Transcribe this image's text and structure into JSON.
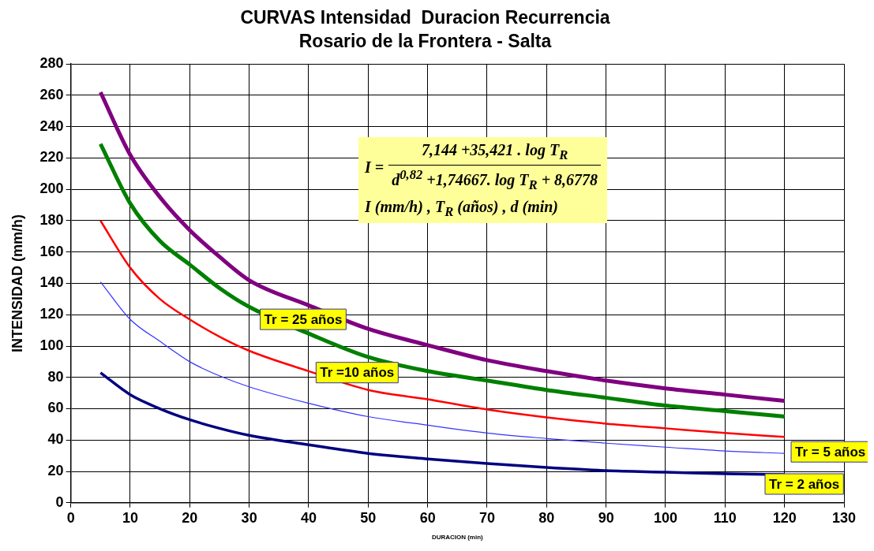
{
  "chart_data": {
    "type": "line",
    "title": "CURVAS Intensidad  Duracion Recurrencia",
    "subtitle": "Rosario de la Frontera - Salta",
    "xlabel": "DURACION (min)",
    "ylabel": "INTENSIDAD (mm/h)",
    "x": [
      5,
      10,
      15,
      20,
      25,
      30,
      40,
      50,
      60,
      70,
      80,
      90,
      100,
      110,
      120
    ],
    "series": [
      {
        "color": "#800080",
        "values": [
          262,
          222,
          195,
          174,
          157,
          142,
          126,
          111,
          100.6,
          91,
          84,
          78,
          73,
          69,
          65
        ]
      },
      {
        "name": "Tr = 25 años",
        "color": "#008000",
        "values": [
          229,
          191,
          167,
          152,
          137,
          125,
          108,
          93,
          84,
          78,
          72,
          67,
          62,
          58.5,
          55
        ]
      },
      {
        "name": "Tr =10 años",
        "color": "#ff0000",
        "values": [
          180,
          150,
          130,
          117,
          106,
          97,
          84,
          72,
          66,
          59.5,
          54.5,
          50.5,
          47.5,
          44.5,
          42
        ]
      },
      {
        "name": "Tr = 5 años",
        "color": "#3333ff",
        "values": [
          141,
          117,
          103,
          90,
          81,
          74,
          63.5,
          55,
          49.5,
          44.5,
          41,
          38,
          35.5,
          33,
          31.5
        ]
      },
      {
        "name": "Tr = 2 años",
        "color": "#000080",
        "values": [
          83,
          69,
          60,
          53,
          47.5,
          43,
          37,
          31.5,
          28,
          25,
          22.5,
          20.5,
          19.5,
          18.5,
          18
        ]
      }
    ],
    "xlim": [
      0,
      130
    ],
    "xticks": [
      0,
      10,
      20,
      30,
      40,
      50,
      60,
      70,
      80,
      90,
      100,
      110,
      120,
      130
    ],
    "ylim": [
      0,
      280
    ],
    "yticks": [
      0,
      20,
      40,
      60,
      80,
      100,
      120,
      140,
      160,
      180,
      200,
      220,
      240,
      260,
      280
    ],
    "grid": true,
    "legend": false,
    "marker": "none",
    "line_style": "solid",
    "annotations": [
      "I =",
      "7,144 +35,421 . log T$_{R}$",
      "d$^{0,82}$ +1,74667. log T$_{R}$ + 8,6778",
      "I (mm/h) , T$_{R}$ (años) , d (min)"
    ]
  }
}
